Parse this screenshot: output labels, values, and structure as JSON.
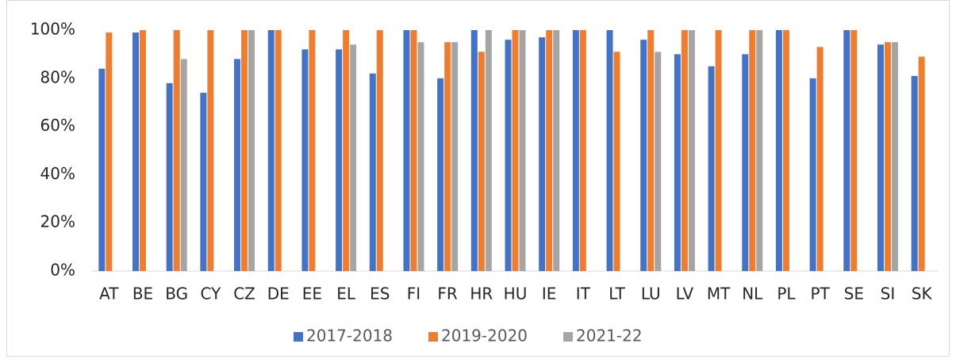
{
  "chart_data": {
    "type": "bar",
    "categories": [
      "AT",
      "BE",
      "BG",
      "CY",
      "CZ",
      "DE",
      "EE",
      "EL",
      "ES",
      "FI",
      "FR",
      "HR",
      "HU",
      "IE",
      "IT",
      "LT",
      "LU",
      "LV",
      "MT",
      "NL",
      "PL",
      "PT",
      "SE",
      "SI",
      "SK"
    ],
    "series": [
      {
        "name": "2017-2018",
        "color": "#4472c4",
        "values": [
          84,
          99,
          78,
          74,
          88,
          100,
          92,
          92,
          82,
          100,
          80,
          100,
          96,
          97,
          100,
          100,
          96,
          90,
          85,
          90,
          100,
          80,
          100,
          94,
          81
        ]
      },
      {
        "name": "2019-2020",
        "color": "#ed7d31",
        "values": [
          99,
          100,
          100,
          100,
          100,
          100,
          100,
          100,
          100,
          100,
          95,
          91,
          100,
          100,
          100,
          91,
          100,
          100,
          100,
          100,
          100,
          93,
          100,
          95,
          89
        ]
      },
      {
        "name": "2021-22",
        "color": "#a5a5a5",
        "values": [
          null,
          null,
          88,
          null,
          100,
          null,
          null,
          94,
          null,
          95,
          95,
          100,
          100,
          100,
          null,
          null,
          91,
          100,
          null,
          100,
          null,
          null,
          null,
          95,
          null
        ]
      }
    ],
    "ylim": [
      0,
      100
    ],
    "yticks": [
      {
        "value": 0,
        "label": "0%"
      },
      {
        "value": 20,
        "label": "20%"
      },
      {
        "value": 40,
        "label": "40%"
      },
      {
        "value": 60,
        "label": "60%"
      },
      {
        "value": 80,
        "label": "80%"
      },
      {
        "value": 100,
        "label": "100%"
      }
    ],
    "grid": false,
    "legend": "bottom"
  }
}
